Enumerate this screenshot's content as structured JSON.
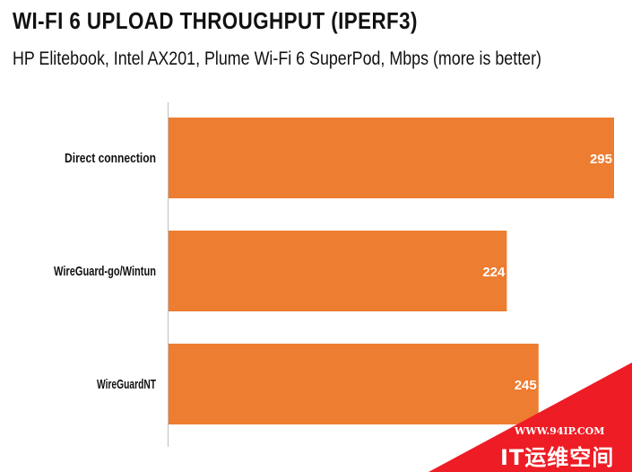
{
  "chart_data": {
    "type": "bar",
    "orientation": "horizontal",
    "title": "WI-FI 6 UPLOAD THROUGHPUT (IPERF3)",
    "subtitle": "HP Elitebook, Intel AX201, Plume Wi-Fi 6 SuperPod, Mbps (more is better)",
    "categories": [
      "Direct connection",
      "WireGuard-go/Wintun",
      "WireGuardNT"
    ],
    "values": [
      295,
      224,
      245
    ],
    "value_labels": [
      "295",
      "224",
      "245"
    ],
    "xlim": [
      0,
      295
    ],
    "grid": false,
    "legend": "none",
    "bar_color": "#ed7d31"
  },
  "watermark": {
    "url": "WWW.94IP.COM",
    "name": "IT运维空间",
    "color": "#ee1c25"
  }
}
